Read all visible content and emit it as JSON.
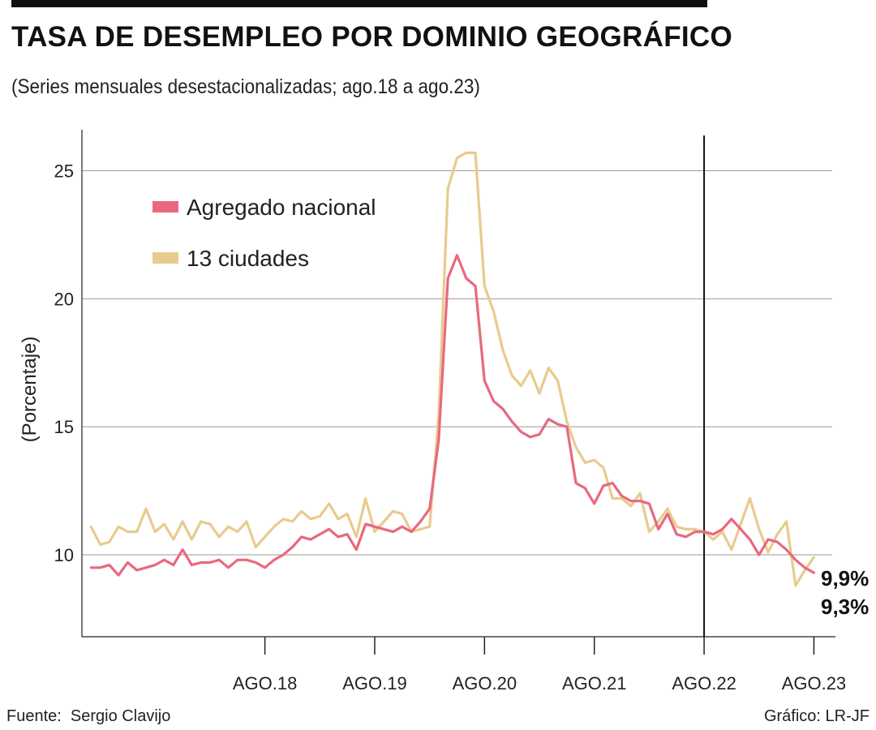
{
  "header": {
    "title": "TASA DE DESEMPLEO POR DOMINIO GEOGRÁFICO",
    "subtitle": "(Series mensuales desestacionalizadas; ago.18 a ago.23)"
  },
  "footer": {
    "source": "Fuente:  Sergio Clavijo",
    "credit": "Gráfico: LR-JF"
  },
  "colors": {
    "nacional": "#e8697f",
    "ciudades": "#e8cb8e",
    "grid": "#9a9a9a",
    "axis": "#222222"
  },
  "chart_data": {
    "type": "line",
    "title": "TASA DE DESEMPLEO POR DOMINIO GEOGRÁFICO",
    "subtitle": "(Series mensuales desestacionalizadas; ago.18 a ago.23)",
    "ylabel": "(Porcentaje)",
    "xlabel": "",
    "ylim": [
      6.8,
      26.6
    ],
    "yticks": [
      10,
      15,
      20,
      25
    ],
    "xrange": [
      "2016-12",
      "2023-10"
    ],
    "xticks": [
      {
        "x": "2018-08",
        "label": "AGO.18"
      },
      {
        "x": "2019-08",
        "label": "AGO.19"
      },
      {
        "x": "2020-08",
        "label": "AGO.20"
      },
      {
        "x": "2021-08",
        "label": "AGO.21"
      },
      {
        "x": "2022-08",
        "label": "AGO.22"
      },
      {
        "x": "2023-08",
        "label": "AGO.23"
      }
    ],
    "reference_line": {
      "x": "2022-08"
    },
    "grid": "horizontal",
    "legend": {
      "placement": "top-left"
    },
    "x": [
      "2017-01",
      "2017-02",
      "2017-03",
      "2017-04",
      "2017-05",
      "2017-06",
      "2017-07",
      "2017-08",
      "2017-09",
      "2017-10",
      "2017-11",
      "2017-12",
      "2018-01",
      "2018-02",
      "2018-03",
      "2018-04",
      "2018-05",
      "2018-06",
      "2018-07",
      "2018-08",
      "2018-09",
      "2018-10",
      "2018-11",
      "2018-12",
      "2019-01",
      "2019-02",
      "2019-03",
      "2019-04",
      "2019-05",
      "2019-06",
      "2019-07",
      "2019-08",
      "2019-09",
      "2019-10",
      "2019-11",
      "2019-12",
      "2020-01",
      "2020-02",
      "2020-03",
      "2020-04",
      "2020-05",
      "2020-06",
      "2020-07",
      "2020-08",
      "2020-09",
      "2020-10",
      "2020-11",
      "2020-12",
      "2021-01",
      "2021-02",
      "2021-03",
      "2021-04",
      "2021-05",
      "2021-06",
      "2021-07",
      "2021-08",
      "2021-09",
      "2021-10",
      "2021-11",
      "2021-12",
      "2022-01",
      "2022-02",
      "2022-03",
      "2022-04",
      "2022-05",
      "2022-06",
      "2022-07",
      "2022-08",
      "2022-09",
      "2022-10",
      "2022-11",
      "2022-12",
      "2023-01",
      "2023-02",
      "2023-03",
      "2023-04",
      "2023-05",
      "2023-06",
      "2023-07",
      "2023-08"
    ],
    "series": [
      {
        "name": "Agregado nacional",
        "color": "#e8697f",
        "end_label": "9,3%",
        "values": [
          9.5,
          9.5,
          9.6,
          9.2,
          9.7,
          9.4,
          9.5,
          9.6,
          9.8,
          9.6,
          10.2,
          9.6,
          9.7,
          9.7,
          9.8,
          9.5,
          9.8,
          9.8,
          9.7,
          9.5,
          9.8,
          10.0,
          10.3,
          10.7,
          10.6,
          10.8,
          11.0,
          10.7,
          10.8,
          10.2,
          11.2,
          11.1,
          11.0,
          10.9,
          11.1,
          10.9,
          11.3,
          11.8,
          14.5,
          20.8,
          21.7,
          20.8,
          20.5,
          16.8,
          16.0,
          15.7,
          15.2,
          14.8,
          14.6,
          14.7,
          15.3,
          15.1,
          15.0,
          12.8,
          12.6,
          12.0,
          12.7,
          12.8,
          12.3,
          12.1,
          12.1,
          12.0,
          11.0,
          11.6,
          10.8,
          10.7,
          10.9,
          10.9,
          10.8,
          11.0,
          11.4,
          11.0,
          10.6,
          10.0,
          10.6,
          10.5,
          10.2,
          9.8,
          9.5,
          9.3
        ]
      },
      {
        "name": "13 ciudades",
        "color": "#e8cb8e",
        "end_label": "9,9%",
        "values": [
          11.1,
          10.4,
          10.5,
          11.1,
          10.9,
          10.9,
          11.8,
          10.9,
          11.2,
          10.6,
          11.3,
          10.6,
          11.3,
          11.2,
          10.7,
          11.1,
          10.9,
          11.3,
          10.3,
          10.7,
          11.1,
          11.4,
          11.3,
          11.7,
          11.4,
          11.5,
          12.0,
          11.4,
          11.6,
          10.7,
          12.2,
          10.9,
          11.3,
          11.7,
          11.6,
          10.9,
          11.0,
          11.1,
          15.5,
          24.3,
          25.5,
          25.7,
          25.7,
          20.5,
          19.5,
          18.0,
          17.0,
          16.6,
          17.2,
          16.3,
          17.3,
          16.8,
          15.2,
          14.2,
          13.6,
          13.7,
          13.4,
          12.2,
          12.2,
          11.9,
          12.4,
          10.9,
          11.3,
          11.8,
          11.1,
          11.0,
          11.0,
          10.9,
          10.6,
          10.9,
          10.2,
          11.2,
          12.2,
          11.0,
          10.1,
          10.8,
          11.3,
          8.8,
          9.4,
          9.9
        ]
      }
    ]
  }
}
